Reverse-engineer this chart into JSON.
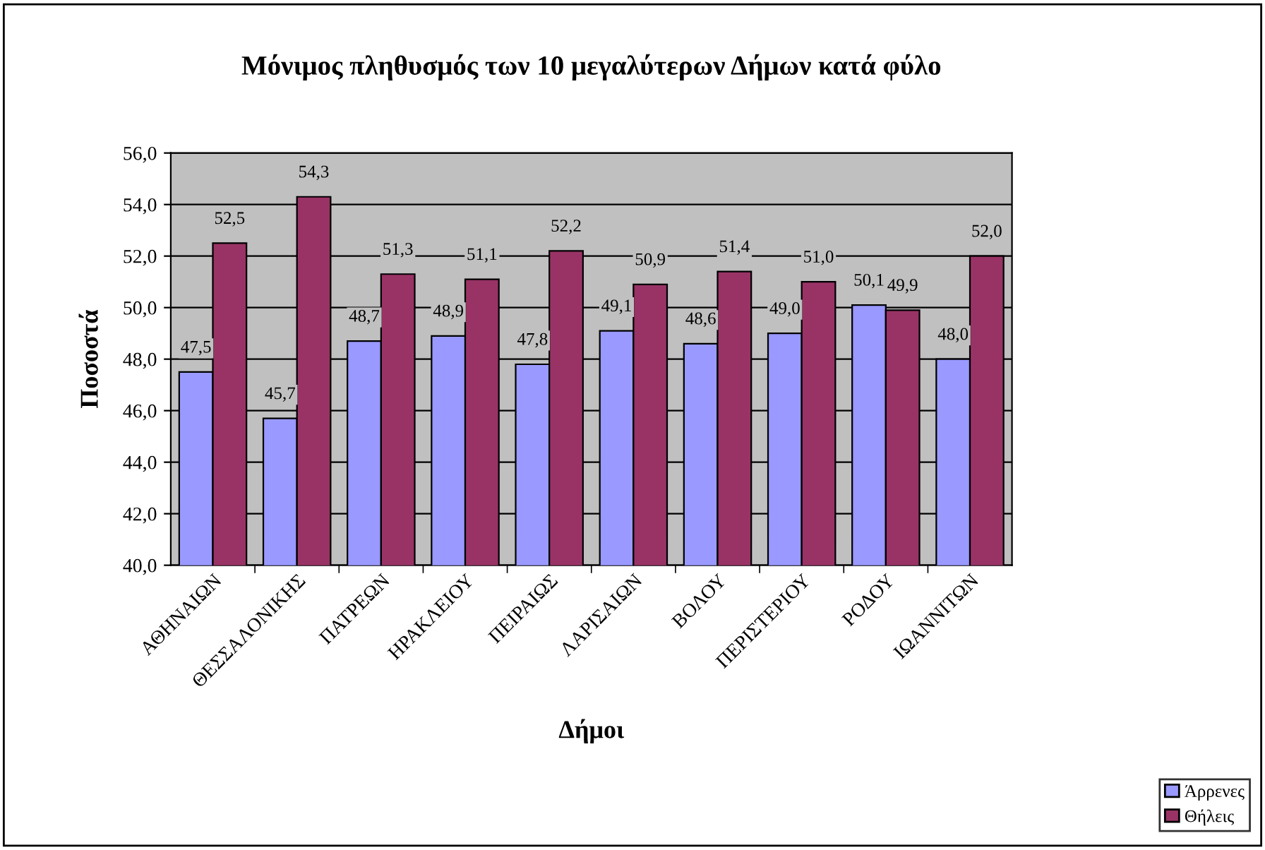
{
  "chart_data": {
    "type": "bar",
    "title": "Μόνιμος πληθυσμός των 10 μεγαλύτερων Δήμων κατά φύλο",
    "xlabel": "Δήμοι",
    "ylabel": "Ποσοστά",
    "categories": [
      "ΑΘΗΝΑΙΩΝ",
      "ΘΕΣΣΑΛΟΝΙΚΗΣ",
      "ΠΑΤΡΕΩΝ",
      "ΗΡΑΚΛΕΙΟΥ",
      "ΠΕΙΡΑΙΩΣ",
      "ΛΑΡΙΣΑΙΩΝ",
      "ΒΟΛΟΥ",
      "ΠΕΡΙΣΤΕΡΙΟΥ",
      "ΡΟΔΟΥ",
      "ΙΩΑΝΝΙΤΩΝ"
    ],
    "series": [
      {
        "name": "Άρρενες",
        "color": "#9999ff",
        "values": [
          47.5,
          45.7,
          48.7,
          48.9,
          47.8,
          49.1,
          48.6,
          49.0,
          50.1,
          48.0
        ],
        "value_labels": [
          "47,5",
          "45,7",
          "48,7",
          "48,9",
          "47,8",
          "49,1",
          "48,6",
          "49,0",
          "50,1",
          "48,0"
        ]
      },
      {
        "name": "Θήλεις",
        "color": "#993366",
        "values": [
          52.5,
          54.3,
          51.3,
          51.1,
          52.2,
          50.9,
          51.4,
          51.0,
          49.9,
          52.0
        ],
        "value_labels": [
          "52,5",
          "54,3",
          "51,3",
          "51,1",
          "52,2",
          "50,9",
          "51,4",
          "51,0",
          "49,9",
          "52,0"
        ]
      }
    ],
    "ylim": [
      40,
      56
    ],
    "yticks": [
      {
        "value": 40,
        "label": "40,0"
      },
      {
        "value": 42,
        "label": "42,0"
      },
      {
        "value": 44,
        "label": "44,0"
      },
      {
        "value": 46,
        "label": "46,0"
      },
      {
        "value": 48,
        "label": "48,0"
      },
      {
        "value": 50,
        "label": "50,0"
      },
      {
        "value": 52,
        "label": "52,0"
      },
      {
        "value": 54,
        "label": "54,0"
      },
      {
        "value": 56,
        "label": "56,0"
      }
    ],
    "grid": "y",
    "legend": "bottom right"
  }
}
